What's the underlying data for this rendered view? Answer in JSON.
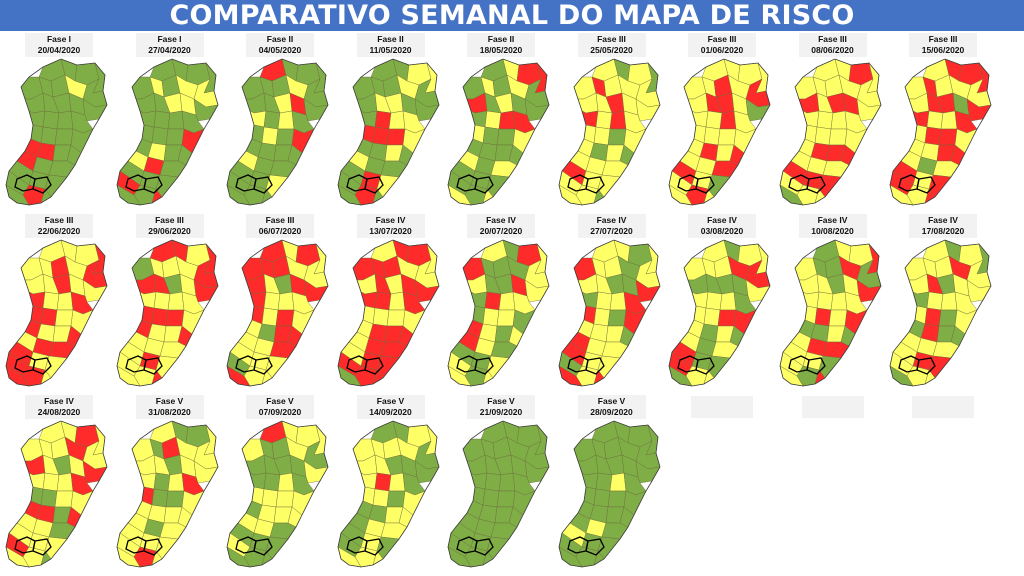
{
  "title": "COMPARATIVO SEMANAL DO MAPA DE RISCO",
  "colors": {
    "baixo": "#7fae46",
    "moderado": "#ffff66",
    "alto": "#ff2a2a",
    "border": "#3c3c3c",
    "banner": "#4472c4"
  },
  "maps": [
    {
      "phase": "Fase I",
      "date": "20/04/2020",
      "mix": [
        0.8,
        0.1,
        0.1
      ]
    },
    {
      "phase": "Fase I",
      "date": "27/04/2020",
      "mix": [
        0.78,
        0.1,
        0.12
      ]
    },
    {
      "phase": "Fase II",
      "date": "04/05/2020",
      "mix": [
        0.75,
        0.13,
        0.12
      ]
    },
    {
      "phase": "Fase II",
      "date": "11/05/2020",
      "mix": [
        0.55,
        0.35,
        0.1
      ]
    },
    {
      "phase": "Fase II",
      "date": "18/05/2020",
      "mix": [
        0.55,
        0.33,
        0.12
      ]
    },
    {
      "phase": "Fase III",
      "date": "25/05/2020",
      "mix": [
        0.15,
        0.7,
        0.15
      ]
    },
    {
      "phase": "Fase III",
      "date": "01/06/2020",
      "mix": [
        0.15,
        0.7,
        0.15
      ]
    },
    {
      "phase": "Fase III",
      "date": "08/06/2020",
      "mix": [
        0.05,
        0.55,
        0.4
      ]
    },
    {
      "phase": "Fase III",
      "date": "15/06/2020",
      "mix": [
        0.03,
        0.52,
        0.45
      ]
    },
    {
      "phase": "Fase III",
      "date": "22/06/2020",
      "mix": [
        0.03,
        0.5,
        0.47
      ]
    },
    {
      "phase": "Fase III",
      "date": "29/06/2020",
      "mix": [
        0.03,
        0.5,
        0.47
      ]
    },
    {
      "phase": "Fase III",
      "date": "06/07/2020",
      "mix": [
        0.03,
        0.42,
        0.55
      ]
    },
    {
      "phase": "Fase IV",
      "date": "13/07/2020",
      "mix": [
        0.03,
        0.37,
        0.6
      ]
    },
    {
      "phase": "Fase IV",
      "date": "20/07/2020",
      "mix": [
        0.35,
        0.45,
        0.2
      ]
    },
    {
      "phase": "Fase IV",
      "date": "27/07/2020",
      "mix": [
        0.3,
        0.45,
        0.25
      ]
    },
    {
      "phase": "Fase IV",
      "date": "03/08/2020",
      "mix": [
        0.3,
        0.55,
        0.15
      ]
    },
    {
      "phase": "Fase IV",
      "date": "10/08/2020",
      "mix": [
        0.25,
        0.55,
        0.2
      ]
    },
    {
      "phase": "Fase IV",
      "date": "17/08/2020",
      "mix": [
        0.2,
        0.65,
        0.15
      ]
    },
    {
      "phase": "Fase IV",
      "date": "24/08/2020",
      "mix": [
        0.25,
        0.5,
        0.25
      ]
    },
    {
      "phase": "Fase V",
      "date": "31/08/2020",
      "mix": [
        0.3,
        0.62,
        0.08
      ]
    },
    {
      "phase": "Fase V",
      "date": "07/09/2020",
      "mix": [
        0.35,
        0.58,
        0.07
      ]
    },
    {
      "phase": "Fase V",
      "date": "14/09/2020",
      "mix": [
        0.4,
        0.58,
        0.02
      ]
    },
    {
      "phase": "Fase V",
      "date": "21/09/2020",
      "mix": [
        0.97,
        0.03,
        0.0
      ]
    },
    {
      "phase": "Fase V",
      "date": "28/09/2020",
      "mix": [
        0.9,
        0.1,
        0.0
      ]
    }
  ]
}
